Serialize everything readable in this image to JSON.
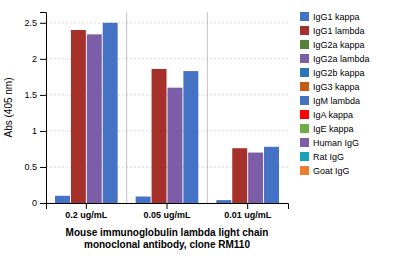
{
  "chart_data": {
    "type": "bar",
    "title": "Mouse immunoglobulin lambda light chain\nmonoclonal antibody, clone RM110",
    "y_label": "Abs (405 nm)",
    "categories": [
      "0.2 ug/mL",
      "0.05 ug/mL",
      "0.01 ug/mL"
    ],
    "series": [
      {
        "name": "IgG1 kappa",
        "color": "#4472c4",
        "values": [
          0.1,
          0.09,
          0.04
        ]
      },
      {
        "name": "IgG1 lambda",
        "color": "#a6302a",
        "values": [
          2.4,
          1.86,
          0.76
        ]
      },
      {
        "name": "IgG2a kappa",
        "color": "#548235",
        "values": [
          null,
          null,
          null
        ]
      },
      {
        "name": "IgG2a lambda",
        "color": "#7b5ea7",
        "values": [
          2.34,
          1.6,
          0.7
        ]
      },
      {
        "name": "IgG2b kappa",
        "color": "#2e75b6",
        "values": [
          null,
          null,
          null
        ]
      },
      {
        "name": "IgG3 kappa",
        "color": "#c55a11",
        "values": [
          null,
          null,
          null
        ]
      },
      {
        "name": "IgM lambda",
        "color": "#4472c4",
        "values": [
          2.5,
          1.83,
          0.78
        ]
      },
      {
        "name": "IgA kappa",
        "color": "#ff0000",
        "values": [
          null,
          null,
          null
        ]
      },
      {
        "name": "IgE kappa",
        "color": "#70ad47",
        "values": [
          null,
          null,
          null
        ]
      },
      {
        "name": "Human IgG",
        "color": "#7b5ea7",
        "values": [
          null,
          null,
          null
        ]
      },
      {
        "name": "Rat IgG",
        "color": "#17a2b8",
        "values": [
          null,
          null,
          null
        ]
      },
      {
        "name": "Goat IgG",
        "color": "#ed7d31",
        "values": [
          null,
          null,
          null
        ]
      }
    ],
    "ylim": [
      0,
      2.65
    ],
    "yticks": [
      0,
      0.5,
      1,
      1.5,
      2,
      2.5
    ],
    "grid": true,
    "legend": "right"
  }
}
